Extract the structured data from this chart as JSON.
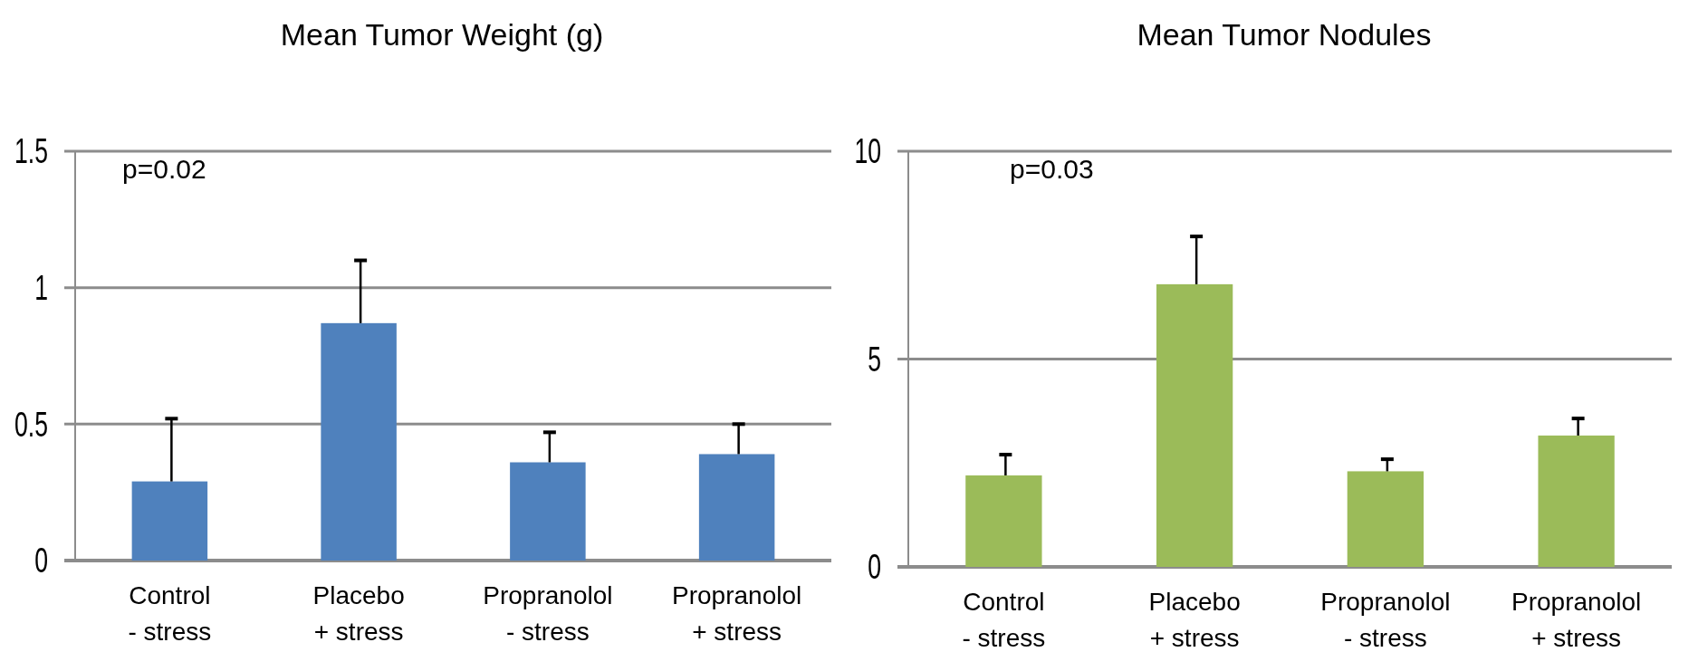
{
  "chart_data": [
    {
      "type": "bar",
      "title": "Mean Tumor Weight (g)",
      "categories": [
        "Control\n- stress",
        "Placebo\n+ stress",
        "Propranolol\n- stress",
        "Propranolol\n+ stress"
      ],
      "values": [
        0.29,
        0.87,
        0.36,
        0.39
      ],
      "errors": [
        [
          0.29,
          0.52
        ],
        [
          0.87,
          1.1
        ],
        [
          0.36,
          0.47
        ],
        [
          0.39,
          0.5
        ]
      ],
      "color": "#4f81bd",
      "ylim": [
        0,
        1.5
      ],
      "yticks": [
        0,
        0.5,
        1,
        1.5
      ],
      "grid": "y",
      "annotations": [
        "p=0.02"
      ]
    },
    {
      "type": "bar",
      "title": "Mean Tumor Nodules",
      "categories": [
        "Control\n- stress",
        "Placebo\n+ stress",
        "Propranolol\n- stress",
        "Propranolol\n+ stress"
      ],
      "values": [
        2.2,
        6.8,
        2.3,
        3.16
      ],
      "errors": [
        [
          2.2,
          2.7
        ],
        [
          6.8,
          7.95
        ],
        [
          2.3,
          2.59
        ],
        [
          3.16,
          3.57
        ]
      ],
      "color": "#9bbb59",
      "ylim": [
        0,
        10
      ],
      "yticks": [
        0,
        5,
        10
      ],
      "grid": "y",
      "annotations": [
        "p=0.03"
      ]
    }
  ]
}
